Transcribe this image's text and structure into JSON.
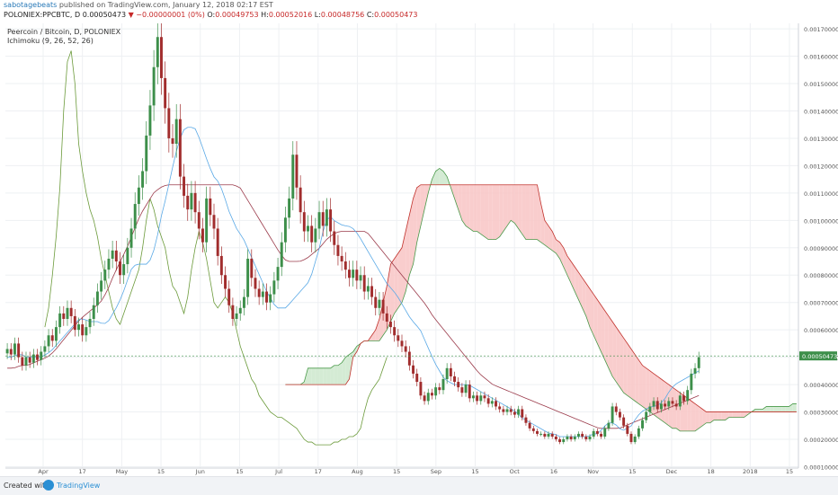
{
  "header": {
    "author": "sabotagebeats",
    "published_text": "published on TradingView.com, January 12, 2018 02:17 EST",
    "symbol": "POLONIEX:PPCBTC, D",
    "price": "0.00050473",
    "change": "−0.00000001 (0%)",
    "o_label": "O:",
    "o_value": "0.00049753",
    "h_label": "H:",
    "h_value": "0.00052016",
    "l_label": "L:",
    "l_value": "0.00048756",
    "c_label": "C:",
    "c_value": "0.00050473"
  },
  "legend": {
    "instrument": "Peercoin / Bitcoin, D, POLONIEX",
    "indicator": "Ichimoku (9, 26, 52, 26)"
  },
  "footer": {
    "created_with": "Created with",
    "brand": "TradingView"
  },
  "colors": {
    "up": "#3d8f4a",
    "down": "#a12d2d",
    "tenkan": "#5aa9e6",
    "kijun": "#9b3b4b",
    "chikou": "#6b9a3a",
    "span_a": "#4a9a4a",
    "span_b": "#c0302a",
    "cloud_bull": "#cfe9cf",
    "cloud_bear": "#f8c8c8",
    "last_price": "#3d8f4a"
  },
  "chart_data": {
    "type": "candlestick",
    "title": "Peercoin / Bitcoin, D, POLONIEX",
    "ylim": [
      9.5e-05,
      0.00172
    ],
    "y_ticks": [
      "0.00170000",
      "0.00160000",
      "0.00150000",
      "0.00140000",
      "0.00130000",
      "0.00120000",
      "0.00110000",
      "0.00100000",
      "0.00090000",
      "0.00080000",
      "0.00070000",
      "0.00060000",
      "0.00050000",
      "0.00040000",
      "0.00030000",
      "0.00020000",
      "0.00010000"
    ],
    "x_ticks": [
      "Apr",
      "17",
      "May",
      "15",
      "Jun",
      "15",
      "Jul",
      "17",
      "Aug",
      "15",
      "Sep",
      "15",
      "Oct",
      "16",
      "Nov",
      "15",
      "Dec",
      "18",
      "2018",
      "15"
    ],
    "last_price_label": "0.00050473",
    "close": [
      0.00053,
      0.00051,
      0.00055,
      0.0005,
      0.00047,
      0.0005,
      0.00048,
      0.00051,
      0.00049,
      0.00052,
      0.00054,
      0.00058,
      0.00056,
      0.00061,
      0.00066,
      0.00064,
      0.00068,
      0.00065,
      0.0006,
      0.00062,
      0.00058,
      0.00061,
      0.00064,
      0.00069,
      0.00074,
      0.00078,
      0.00082,
      0.00086,
      0.00089,
      0.00085,
      0.0008,
      0.00084,
      0.0009,
      0.00097,
      0.00106,
      0.00112,
      0.00118,
      0.00131,
      0.00142,
      0.00156,
      0.00167,
      0.00152,
      0.00141,
      0.0013,
      0.00128,
      0.00137,
      0.00116,
      0.00109,
      0.00104,
      0.0011,
      0.00103,
      0.00097,
      0.00092,
      0.00108,
      0.00102,
      0.00097,
      0.00087,
      0.0008,
      0.00075,
      0.00069,
      0.00064,
      0.00066,
      0.00068,
      0.00072,
      0.00086,
      0.00079,
      0.00075,
      0.00072,
      0.00074,
      0.0007,
      0.00073,
      0.00078,
      0.00083,
      0.00092,
      0.00101,
      0.00108,
      0.00124,
      0.00112,
      0.00103,
      0.00096,
      0.00098,
      0.00092,
      0.00097,
      0.00103,
      0.00098,
      0.00104,
      0.00096,
      0.00091,
      0.00087,
      0.00085,
      0.00082,
      0.00079,
      0.00082,
      0.00078,
      0.0008,
      0.00074,
      0.00076,
      0.00072,
      0.00068,
      0.00071,
      0.00066,
      0.00063,
      0.00061,
      0.00058,
      0.00056,
      0.00054,
      0.00052,
      0.00047,
      0.00044,
      0.00041,
      0.00036,
      0.00034,
      0.00037,
      0.00036,
      0.00039,
      0.00038,
      0.00042,
      0.00046,
      0.00043,
      0.00041,
      0.00039,
      0.00037,
      0.0004,
      0.00035,
      0.00036,
      0.00034,
      0.00036,
      0.00035,
      0.00033,
      0.00034,
      0.00032,
      0.00031,
      0.0003,
      0.00031,
      0.0003,
      0.00029,
      0.00031,
      0.00028,
      0.00026,
      0.00024,
      0.00023,
      0.00022,
      0.00022,
      0.00021,
      0.00022,
      0.00021,
      0.0002,
      0.00019,
      0.0002,
      0.00021,
      0.0002,
      0.00021,
      0.00022,
      0.00021,
      0.0002,
      0.00021,
      0.00023,
      0.00022,
      0.00021,
      0.00024,
      0.00026,
      0.00032,
      0.0003,
      0.00028,
      0.00025,
      0.00022,
      0.00019,
      0.00021,
      0.00024,
      0.00027,
      0.0003,
      0.00032,
      0.00034,
      0.00031,
      0.00033,
      0.00032,
      0.00034,
      0.00033,
      0.00032,
      0.00036,
      0.00034,
      0.00038,
      0.00044,
      0.00046,
      0.0005
    ],
    "tenkan": [
      0.0005,
      0.0005,
      0.00051,
      0.00051,
      0.0005,
      0.0005,
      0.0005,
      0.0005,
      0.00051,
      0.00052,
      0.00054,
      0.00056,
      0.00058,
      0.0006,
      0.00062,
      0.00064,
      0.00064,
      0.00063,
      0.00063,
      0.00063,
      0.00062,
      0.00063,
      0.00066,
      0.00069,
      0.00073,
      0.00078,
      0.00083,
      0.00084,
      0.00084,
      0.00084,
      0.00086,
      0.00092,
      0.00101,
      0.00108,
      0.00116,
      0.00124,
      0.0013,
      0.00134,
      0.00134,
      0.00134,
      0.0013,
      0.00125,
      0.0012,
      0.00116,
      0.00114,
      0.0011,
      0.00104,
      0.001,
      0.00096,
      0.00094,
      0.0009,
      0.00086,
      0.00082,
      0.00078,
      0.00074,
      0.00071,
      0.00068,
      0.00068,
      0.00068,
      0.0007,
      0.00072,
      0.00074,
      0.00076,
      0.00078,
      0.00084,
      0.0009,
      0.00098,
      0.00102,
      0.001,
      0.00099,
      0.00098,
      0.00098,
      0.00097,
      0.00095,
      0.00092,
      0.00089,
      0.00086,
      0.00083,
      0.0008,
      0.00077,
      0.00075,
      0.00073,
      0.0007,
      0.00067,
      0.00064,
      0.00062,
      0.0006,
      0.00056,
      0.00052,
      0.00048,
      0.00045,
      0.00042,
      0.00041,
      0.0004,
      0.0004,
      0.0004,
      0.0004,
      0.00039,
      0.00038,
      0.00037,
      0.00036,
      0.00035,
      0.00034,
      0.00033,
      0.00032,
      0.00031,
      0.0003,
      0.00028,
      0.00027,
      0.00026,
      0.00025,
      0.00024,
      0.00023,
      0.00022,
      0.00022,
      0.00021,
      0.00021,
      0.00021,
      0.00021,
      0.00021,
      0.00021,
      0.00021,
      0.00022,
      0.00022,
      0.00024,
      0.00026,
      0.00026,
      0.00025,
      0.00023,
      0.00024,
      0.00025,
      0.00028,
      0.0003,
      0.00031,
      0.00032,
      0.00032,
      0.00033,
      0.00035,
      0.00038,
      0.0004,
      0.00041,
      0.00042,
      0.00043,
      0.00044,
      0.00045
    ],
    "kijun": [
      0.00046,
      0.00046,
      0.00047,
      0.00047,
      0.00048,
      0.00049,
      0.0005,
      0.00052,
      0.00055,
      0.00058,
      0.00061,
      0.00064,
      0.00066,
      0.00068,
      0.0007,
      0.00074,
      0.0008,
      0.00085,
      0.0009,
      0.00096,
      0.00102,
      0.00106,
      0.0011,
      0.00112,
      0.00113,
      0.00113,
      0.00113,
      0.00113,
      0.00113,
      0.00113,
      0.00113,
      0.00113,
      0.00113,
      0.00113,
      0.00113,
      0.00112,
      0.00108,
      0.00104,
      0.001,
      0.00096,
      0.00092,
      0.00088,
      0.00085,
      0.00085,
      0.00085,
      0.00086,
      0.00088,
      0.0009,
      0.00093,
      0.00095,
      0.00096,
      0.00096,
      0.00096,
      0.00096,
      0.00096,
      0.00093,
      0.0009,
      0.00087,
      0.00084,
      0.00081,
      0.00078,
      0.00075,
      0.00072,
      0.00069,
      0.00065,
      0.00062,
      0.00059,
      0.00056,
      0.00053,
      0.0005,
      0.00047,
      0.00044,
      0.00042,
      0.0004,
      0.00039,
      0.00038,
      0.00037,
      0.00036,
      0.00035,
      0.00034,
      0.00033,
      0.00032,
      0.00031,
      0.0003,
      0.00029,
      0.00028,
      0.00027,
      0.00026,
      0.00025,
      0.00024,
      0.00024,
      0.00024,
      0.00024,
      0.00025,
      0.00026,
      0.00027,
      0.00028,
      0.00029,
      0.0003,
      0.00031,
      0.00032,
      0.00033,
      0.00034,
      0.00035,
      0.00036
    ],
    "span_a": [
      0.0004,
      0.0004,
      0.0004,
      0.0004,
      0.0004,
      0.00041,
      0.00046,
      0.00046,
      0.00046,
      0.00046,
      0.00046,
      0.00046,
      0.00046,
      0.00047,
      0.00047,
      0.00048,
      0.0005,
      0.00051,
      0.00052,
      0.00054,
      0.00055,
      0.00056,
      0.00056,
      0.00056,
      0.00056,
      0.00056,
      0.00058,
      0.0006,
      0.00063,
      0.00066,
      0.00068,
      0.0007,
      0.00074,
      0.0008,
      0.00084,
      0.00092,
      0.00098,
      0.00104,
      0.0011,
      0.00115,
      0.00118,
      0.00119,
      0.00118,
      0.00116,
      0.00112,
      0.00108,
      0.00104,
      0.001,
      0.00098,
      0.00097,
      0.00096,
      0.00096,
      0.00095,
      0.00094,
      0.00093,
      0.00093,
      0.00093,
      0.00094,
      0.00096,
      0.00098,
      0.001,
      0.00099,
      0.00097,
      0.00095,
      0.00093,
      0.00093,
      0.00093,
      0.00093,
      0.00092,
      0.00091,
      0.0009,
      0.00089,
      0.00088,
      0.00086,
      0.00083,
      0.0008,
      0.00077,
      0.00074,
      0.00071,
      0.00068,
      0.00065,
      0.00061,
      0.00058,
      0.00055,
      0.00052,
      0.00049,
      0.00046,
      0.00043,
      0.00041,
      0.00039,
      0.00037,
      0.00036,
      0.00035,
      0.00034,
      0.00033,
      0.00032,
      0.00031,
      0.0003,
      0.00029,
      0.00028,
      0.00027,
      0.00026,
      0.00025,
      0.00024,
      0.00024,
      0.00023,
      0.00023,
      0.00023,
      0.00023,
      0.00023,
      0.00024,
      0.00025,
      0.00026,
      0.00026,
      0.00027,
      0.00027,
      0.00027,
      0.00027,
      0.00028,
      0.00028,
      0.00028,
      0.00028,
      0.00028,
      0.00029,
      0.0003,
      0.00031,
      0.00031,
      0.00031,
      0.00032,
      0.00032,
      0.00032,
      0.00032,
      0.00032,
      0.00032,
      0.00032,
      0.00033,
      0.00033
    ],
    "span_b": [
      0.0004,
      0.0004,
      0.0004,
      0.0004,
      0.0004,
      0.0004,
      0.0004,
      0.0004,
      0.0004,
      0.0004,
      0.0004,
      0.0004,
      0.0004,
      0.0004,
      0.0004,
      0.0004,
      0.0004,
      0.00042,
      0.0005,
      0.00052,
      0.00055,
      0.00056,
      0.00056,
      0.00058,
      0.0006,
      0.00064,
      0.0007,
      0.00076,
      0.00084,
      0.00086,
      0.00088,
      0.0009,
      0.00096,
      0.00102,
      0.00108,
      0.00112,
      0.00113,
      0.00113,
      0.00113,
      0.00113,
      0.00113,
      0.00113,
      0.00113,
      0.00113,
      0.00113,
      0.00113,
      0.00113,
      0.00113,
      0.00113,
      0.00113,
      0.00113,
      0.00113,
      0.00113,
      0.00113,
      0.00113,
      0.00113,
      0.00113,
      0.00113,
      0.00113,
      0.00113,
      0.00113,
      0.00113,
      0.00113,
      0.00113,
      0.00113,
      0.00113,
      0.00113,
      0.00113,
      0.00106,
      0.001,
      0.00098,
      0.00096,
      0.00093,
      0.00092,
      0.0009,
      0.00087,
      0.00085,
      0.00083,
      0.00081,
      0.00079,
      0.00077,
      0.00075,
      0.00073,
      0.00071,
      0.00069,
      0.00067,
      0.00065,
      0.00063,
      0.00061,
      0.00059,
      0.00057,
      0.00055,
      0.00053,
      0.00051,
      0.00049,
      0.00047,
      0.00046,
      0.00045,
      0.00044,
      0.00043,
      0.00042,
      0.00041,
      0.0004,
      0.00039,
      0.00038,
      0.00037,
      0.00036,
      0.00035,
      0.00034,
      0.00033,
      0.00032,
      0.00031,
      0.0003,
      0.0003,
      0.0003,
      0.0003,
      0.0003,
      0.0003,
      0.0003,
      0.0003,
      0.0003,
      0.0003,
      0.0003,
      0.0003,
      0.0003,
      0.0003,
      0.0003,
      0.0003,
      0.0003,
      0.0003,
      0.0003,
      0.0003,
      0.0003,
      0.0003,
      0.0003,
      0.0003,
      0.0003
    ],
    "chikou": [
      0.00061,
      0.00068,
      0.0008,
      0.00094,
      0.00112,
      0.0014,
      0.00158,
      0.00162,
      0.0015,
      0.00128,
      0.00118,
      0.0011,
      0.00104,
      0.001,
      0.00094,
      0.00086,
      0.0008,
      0.00074,
      0.00068,
      0.00064,
      0.00062,
      0.00066,
      0.0007,
      0.00074,
      0.00078,
      0.00082,
      0.0009,
      0.001,
      0.00108,
      0.00104,
      0.00098,
      0.00094,
      0.0009,
      0.00082,
      0.00076,
      0.00074,
      0.0007,
      0.00066,
      0.00072,
      0.00082,
      0.0009,
      0.00096,
      0.00092,
      0.00086,
      0.00078,
      0.0007,
      0.00068,
      0.0007,
      0.00072,
      0.0007,
      0.00066,
      0.0006,
      0.00054,
      0.0005,
      0.00046,
      0.00042,
      0.0004,
      0.00036,
      0.00034,
      0.00032,
      0.0003,
      0.00029,
      0.00028,
      0.00028,
      0.00027,
      0.00026,
      0.00025,
      0.00024,
      0.00022,
      0.0002,
      0.00019,
      0.00019,
      0.00018,
      0.00018,
      0.00018,
      0.00018,
      0.00018,
      0.00019,
      0.00019,
      0.0002,
      0.0002,
      0.00021,
      0.00021,
      0.00022,
      0.00024,
      0.0003,
      0.00035,
      0.00038,
      0.0004,
      0.00042,
      0.00046,
      0.0005
    ]
  }
}
